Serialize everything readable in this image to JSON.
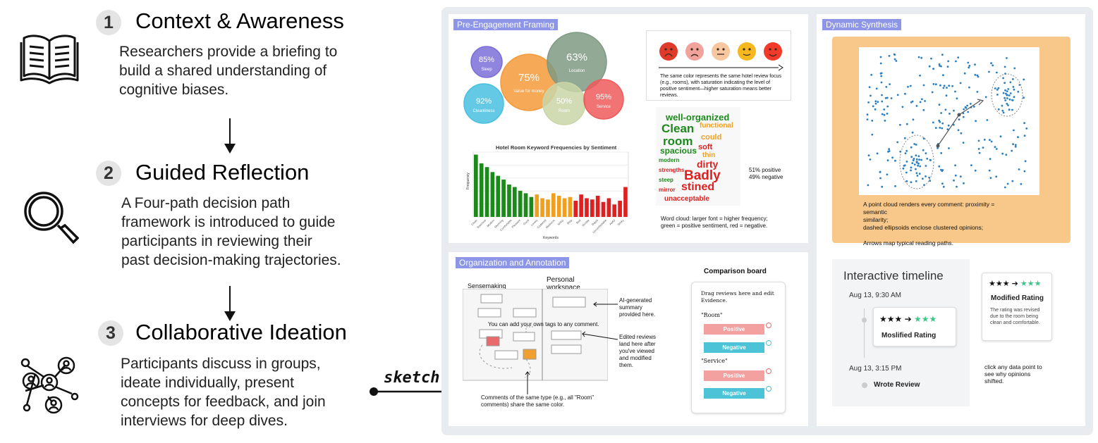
{
  "steps": [
    {
      "num": "1",
      "title": "Context & Awareness",
      "desc": [
        "Researchers provide a briefing to",
        "build a shared understanding of",
        "cognitive biases."
      ],
      "icon": "open-book-icon"
    },
    {
      "num": "2",
      "title": "Guided Reflection",
      "desc": [
        "A Four-path decision path",
        "framework is introduced to guide",
        "participants in reviewing their",
        "past decision-making trajectories."
      ],
      "icon": "magnifier-icon"
    },
    {
      "num": "3",
      "title": "Collaborative Ideation",
      "desc": [
        "Participants discuss in groups,",
        "ideate individually, present",
        "concepts for feedback, and join",
        "interviews for deep dives."
      ],
      "icon": "network-people-icon"
    }
  ],
  "sketch_label": "sketch",
  "pre": {
    "tag": "Pre-Engagement Framing",
    "bubbles": [
      {
        "pct": "85%",
        "label": "Sleep",
        "color": "#7b6fd8"
      },
      {
        "pct": "75%",
        "label": "Value for money",
        "color": "#f59a3a"
      },
      {
        "pct": "63%",
        "label": "Location",
        "color": "#7f9a82"
      },
      {
        "pct": "92%",
        "label": "Cleanliness",
        "color": "#48c0e0"
      },
      {
        "pct": "50%",
        "label": "Room",
        "color": "#c9d6a8"
      },
      {
        "pct": "95%",
        "label": "Service",
        "color": "#ee5a5a"
      }
    ],
    "emoji_note": [
      "The same color represents the same hotel review focus",
      "(e.g., rooms), with saturation indicating the level of",
      "positive sentiment—higher saturation means better",
      "reviews."
    ],
    "bar_title": "Hotel Room Keyword Frequencies by Sentiment",
    "bar_xlabel": "Keywords",
    "bar_ylabel": "Frequency",
    "bars": [
      {
        "v": 5.0,
        "c": "#1b8a1b"
      },
      {
        "v": 4.3,
        "c": "#1b8a1b"
      },
      {
        "v": 4.0,
        "c": "#1b8a1b"
      },
      {
        "v": 3.6,
        "c": "#1b8a1b"
      },
      {
        "v": 3.3,
        "c": "#1b8a1b"
      },
      {
        "v": 3.0,
        "c": "#1b8a1b"
      },
      {
        "v": 2.6,
        "c": "#1b8a1b"
      },
      {
        "v": 2.4,
        "c": "#1b8a1b"
      },
      {
        "v": 2.1,
        "c": "#1b8a1b"
      },
      {
        "v": 1.9,
        "c": "#1b8a1b"
      },
      {
        "v": 1.6,
        "c": "#1b8a1b"
      },
      {
        "v": 1.8,
        "c": "#f0a020"
      },
      {
        "v": 1.5,
        "c": "#f0a020"
      },
      {
        "v": 1.4,
        "c": "#f0a020"
      },
      {
        "v": 1.9,
        "c": "#f0a020"
      },
      {
        "v": 1.7,
        "c": "#f0a020"
      },
      {
        "v": 1.5,
        "c": "#f0a020"
      },
      {
        "v": 1.6,
        "c": "#f0a020"
      },
      {
        "v": 1.3,
        "c": "#e02020"
      },
      {
        "v": 1.8,
        "c": "#e02020"
      },
      {
        "v": 1.5,
        "c": "#e02020"
      },
      {
        "v": 1.4,
        "c": "#e02020"
      },
      {
        "v": 1.7,
        "c": "#e02020"
      },
      {
        "v": 1.2,
        "c": "#e02020"
      },
      {
        "v": 1.5,
        "c": "#e02020"
      },
      {
        "v": 1.0,
        "c": "#e02020"
      },
      {
        "v": 1.3,
        "c": "#e02020"
      },
      {
        "v": 2.4,
        "c": "#e02020"
      }
    ],
    "bar_keywords": [
      "Clean",
      "Spacious",
      "Modern",
      "Stunning",
      "Comfortable",
      "Pleasant",
      "Good",
      "Lovely",
      "Cluttered",
      "Mediocre",
      "Noisy",
      "Dirty",
      "Bad",
      "Terrible",
      "Dated",
      "Uncomfortable",
      "Awful",
      "Stinky"
    ],
    "wordcloud": [
      {
        "t": "well-organized",
        "c": "#1b8a1b",
        "s": 13
      },
      {
        "t": "Clean",
        "c": "#1b8a1b",
        "s": 17
      },
      {
        "t": "functional",
        "c": "#f0a020",
        "s": 10
      },
      {
        "t": "room",
        "c": "#1b8a1b",
        "s": 17
      },
      {
        "t": "could",
        "c": "#f0a020",
        "s": 11
      },
      {
        "t": "soft",
        "c": "#e02020",
        "s": 11
      },
      {
        "t": "spacious",
        "c": "#1b8a1b",
        "s": 12
      },
      {
        "t": "thin",
        "c": "#f0a020",
        "s": 10
      },
      {
        "t": "modern",
        "c": "#1b8a1b",
        "s": 8
      },
      {
        "t": "dirty",
        "c": "#e02020",
        "s": 14
      },
      {
        "t": "strengths",
        "c": "#e02020",
        "s": 8
      },
      {
        "t": "Badly",
        "c": "#e02020",
        "s": 19
      },
      {
        "t": "steep",
        "c": "#1b8a1b",
        "s": 8
      },
      {
        "t": "stined",
        "c": "#e02020",
        "s": 16
      },
      {
        "t": "mirror",
        "c": "#e02020",
        "s": 8
      },
      {
        "t": "unacceptable",
        "c": "#e02020",
        "s": 10
      }
    ],
    "wc_stats": [
      "51% positive",
      "49% negative"
    ],
    "wc_note": [
      "Word cloud: larger font = higher frequency;",
      "green = positive sentiment, red = negative."
    ]
  },
  "dyn": {
    "tag": "Dynamic Synthesis",
    "note": [
      "A point cloud renders every comment: proximity = semantic",
      "similarity;",
      "dashed ellipsoids enclose clustered opinions;",
      "",
      "Arrows map typical reading paths."
    ],
    "timeline_title": "Interactive timeline",
    "time1": "Aug 13, 9:30 AM",
    "time2": "Aug 13, 3:15 PM",
    "card_label": "Moslified Rating",
    "wrote": "Wrote Review",
    "mod_title": "Modified Rating",
    "mod_desc": [
      "The rating was revised",
      "due to the room being",
      "clean and comfortable."
    ],
    "click_note": [
      "click any data point to",
      "see why opinions",
      "shifted."
    ]
  },
  "org": {
    "tag": "Organization and Annotation",
    "sensemaking": "Sensemaking",
    "personal": [
      "Personal",
      "workspace"
    ],
    "ai_note": [
      "AI-generated",
      "summary",
      "provided here."
    ],
    "tags_note": "You can add your own tags to any comment.",
    "edited_note": [
      "Edited reviews",
      "land here after",
      "you've viewed",
      "and modified",
      "them."
    ],
    "comments_note": [
      "Comments of the same type (e.g., all \"Room\"",
      "comments) share the same color."
    ],
    "board_title": "Comparison board",
    "board_instr": [
      "Drag reviews here and edit",
      "Evidence."
    ],
    "room": "\"Room\"",
    "service": "\"Service\"",
    "positive": "Positive",
    "negative": "Negative"
  }
}
